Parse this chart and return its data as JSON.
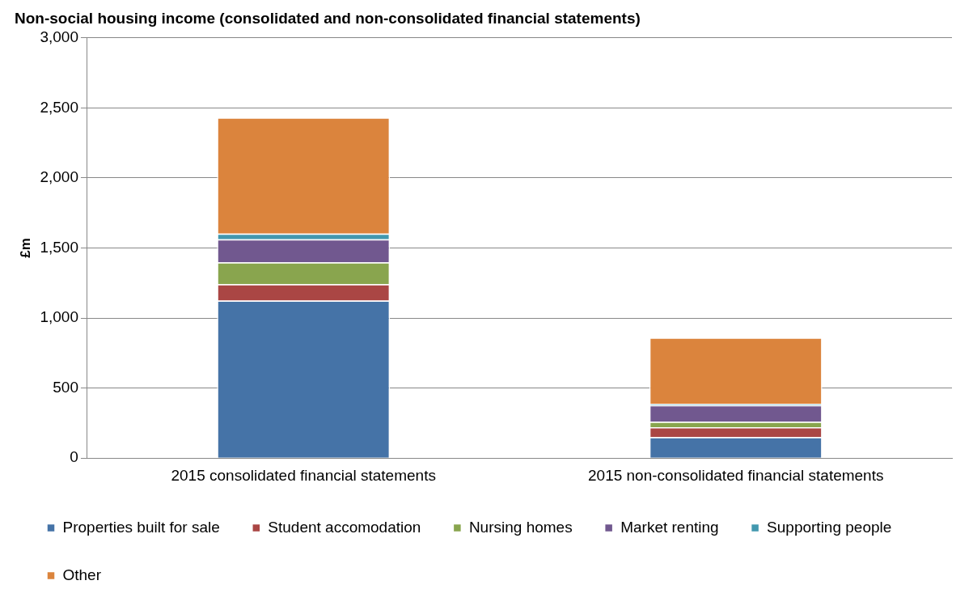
{
  "chart_data": {
    "type": "bar",
    "title": "Non-social housing income (consolidated and non-consolidated financial statements)",
    "ylabel": "£m",
    "categories": [
      "2015 consolidated financial statements",
      "2015 non-consolidated financial statements"
    ],
    "stacked": true,
    "series": [
      {
        "name": "Properties built for sale",
        "color": "#4573a7",
        "values": [
          1125,
          150
        ]
      },
      {
        "name": "Student accomodation",
        "color": "#aa4644",
        "values": [
          116,
          71
        ]
      },
      {
        "name": "Nursing homes",
        "color": "#89a54e",
        "values": [
          157,
          39
        ]
      },
      {
        "name": "Market renting",
        "color": "#71588f",
        "values": [
          164,
          118
        ]
      },
      {
        "name": "Supporting people",
        "color": "#4298af",
        "values": [
          41,
          10
        ]
      },
      {
        "name": "Other",
        "color": "#db843d",
        "values": [
          829,
          473
        ]
      }
    ],
    "ylim": [
      0,
      3000
    ],
    "yticks": [
      0,
      500,
      {
        "value": 1000,
        "label": "1,000"
      },
      {
        "value": 1500,
        "label": "1,500"
      },
      {
        "value": 2000,
        "label": "2,000"
      },
      {
        "value": 2500,
        "label": "2,500"
      },
      {
        "value": 3000,
        "label": "3,000"
      }
    ],
    "grid": "y",
    "legend": "bottom"
  }
}
